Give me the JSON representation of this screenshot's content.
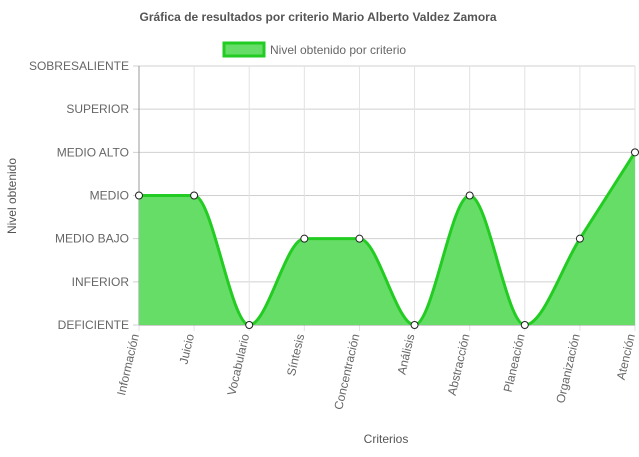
{
  "chart_data": {
    "type": "area",
    "title": "Gráfica de resultados por criterio Mario Alberto Valdez Zamora",
    "xlabel": "Criterios",
    "ylabel": "Nivel obtenido",
    "y_levels": [
      "DEFICIENTE",
      "INFERIOR",
      "MEDIO BAJO",
      "MEDIO",
      "MEDIO ALTO",
      "SUPERIOR",
      "SOBRESALIENTE"
    ],
    "ylim": [
      0,
      6
    ],
    "categories": [
      "Información",
      "Juicio",
      "Vocabulario",
      "Síntesis",
      "Concentración",
      "Análisis",
      "Abstracción",
      "Planeación",
      "Organización",
      "Atención"
    ],
    "series": [
      {
        "name": "Nivel obtenido por criterio",
        "values": [
          3,
          3,
          0,
          2,
          2,
          0,
          3,
          0,
          2,
          4
        ],
        "line_color": "#22cc22",
        "fill_color": "#66dd66"
      }
    ],
    "legend_position": "top-center",
    "grid": true
  }
}
